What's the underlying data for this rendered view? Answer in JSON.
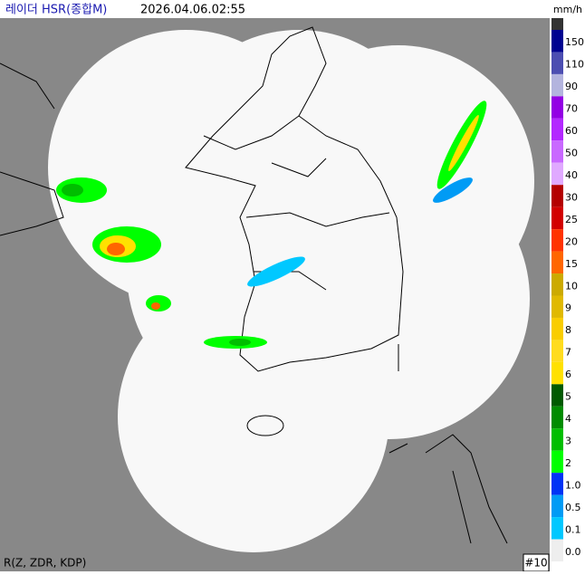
{
  "header": {
    "title": "레이더 HSR(종합M)",
    "timestamp": "2026.04.06.02:55"
  },
  "legend": {
    "unit": "mm/h",
    "items": [
      {
        "label": "150",
        "color": "#000390"
      },
      {
        "label": "110",
        "color": "#4c4eb1"
      },
      {
        "label": "90",
        "color": "#b3b4de"
      },
      {
        "label": "70",
        "color": "#9300e4"
      },
      {
        "label": "60",
        "color": "#b329ff"
      },
      {
        "label": "50",
        "color": "#c969ff"
      },
      {
        "label": "40",
        "color": "#e0a9ff"
      },
      {
        "label": "30",
        "color": "#b40000"
      },
      {
        "label": "25",
        "color": "#d20000"
      },
      {
        "label": "20",
        "color": "#ff3300"
      },
      {
        "label": "15",
        "color": "#ff6600"
      },
      {
        "label": "10",
        "color": "#ccaa00"
      },
      {
        "label": "9",
        "color": "#e0b900"
      },
      {
        "label": "8",
        "color": "#f9cd00"
      },
      {
        "label": "7",
        "color": "#ffdc1f"
      },
      {
        "label": "6",
        "color": "#ffe100"
      },
      {
        "label": "5",
        "color": "#005a00"
      },
      {
        "label": "4",
        "color": "#008c00"
      },
      {
        "label": "3",
        "color": "#00be00"
      },
      {
        "label": "2",
        "color": "#00ff00"
      },
      {
        "label": "1.0",
        "color": "#0033f5"
      },
      {
        "label": "0.5",
        "color": "#009bf5"
      },
      {
        "label": "0.1",
        "color": "#00c8ff"
      },
      {
        "label": "0.0",
        "color": "#eeeeee"
      }
    ]
  },
  "footer": {
    "method": "R(Z, ZDR, KDP)",
    "frame": "#10"
  }
}
